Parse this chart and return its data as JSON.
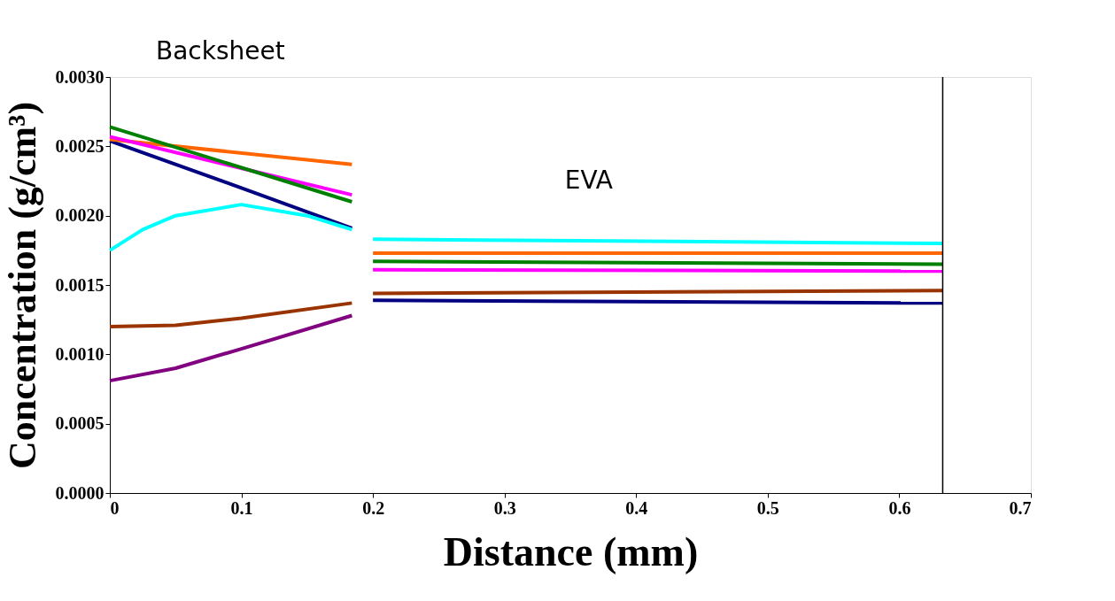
{
  "chart_data": {
    "type": "line",
    "xlabel": "Distance (mm)",
    "ylabel": "Concentration (g/cm³)",
    "annotations": [
      "Backsheet",
      "EVA"
    ],
    "xlim": [
      0,
      0.7
    ],
    "xticks": [
      0,
      0.1,
      0.2,
      0.3,
      0.4,
      0.5,
      0.6,
      0.7
    ],
    "ylim": [
      0,
      0.003
    ],
    "yticks": [
      {
        "value": 0,
        "label": "0.0000"
      },
      {
        "value": 0.0005,
        "label": "0.0005"
      },
      {
        "value": 0.001,
        "label": "0.0010"
      },
      {
        "value": 0.0015,
        "label": "0.0015"
      },
      {
        "value": 0.002,
        "label": "0.0020"
      },
      {
        "value": 0.0025,
        "label": "0.0025"
      },
      {
        "value": 0.003,
        "label": "0.0030"
      }
    ],
    "grid": false,
    "legend": false,
    "marker": "none",
    "line_style": "solid",
    "ref_lines": [
      {
        "axis": "x",
        "value": 0.633,
        "label": null,
        "color": "#000000"
      }
    ],
    "series": [
      {
        "color": "#000080",
        "x": [
          0,
          0.1,
          0.184,
          null,
          0.2,
          0.633
        ],
        "values": [
          0.00254,
          0.0022,
          0.00191,
          null,
          0.00139,
          0.00137
        ]
      },
      {
        "color": "#ff6600",
        "x": [
          0,
          0.184,
          null,
          0.2,
          0.633
        ],
        "values": [
          0.00255,
          0.00237,
          null,
          0.00173,
          0.00173
        ]
      },
      {
        "color": "#ff00ff",
        "x": [
          0,
          0.184,
          null,
          0.2,
          0.633
        ],
        "values": [
          0.00257,
          0.00215,
          null,
          0.00161,
          0.0016
        ]
      },
      {
        "color": "#008000",
        "x": [
          0,
          0.184,
          null,
          0.2,
          0.633
        ],
        "values": [
          0.00264,
          0.0021,
          null,
          0.00167,
          0.00165
        ]
      },
      {
        "color": "#00ffff",
        "x": [
          0,
          0.025,
          0.05,
          0.1,
          0.15,
          0.184,
          null,
          0.2,
          0.633
        ],
        "values": [
          0.00175,
          0.0019,
          0.002,
          0.00208,
          0.002,
          0.0019,
          null,
          0.00183,
          0.0018
        ]
      },
      {
        "color": "#993300",
        "x": [
          0,
          0.05,
          0.1,
          0.184,
          null,
          0.2,
          0.633
        ],
        "values": [
          0.0012,
          0.00121,
          0.00126,
          0.00137,
          null,
          0.00144,
          0.00146
        ]
      },
      {
        "color": "#800080",
        "x": [
          0,
          0.05,
          0.1,
          0.184
        ],
        "values": [
          0.00081,
          0.0009,
          0.00104,
          0.00128
        ]
      }
    ]
  }
}
